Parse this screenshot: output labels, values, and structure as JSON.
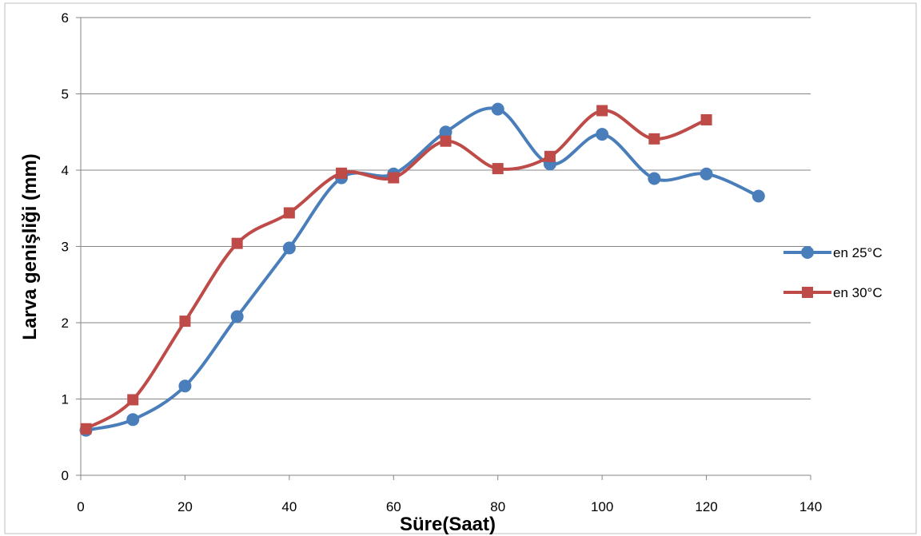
{
  "chart_data": {
    "type": "line",
    "xlabel": "Süre(Saat)",
    "ylabel": "Larva genişliği (mm)",
    "xlim": [
      0,
      140
    ],
    "ylim": [
      0,
      6
    ],
    "xticks": [
      0,
      20,
      40,
      60,
      80,
      100,
      120,
      140
    ],
    "yticks": [
      0,
      1,
      2,
      3,
      4,
      5,
      6
    ],
    "grid": "horizontal",
    "legend_position": "right",
    "series": [
      {
        "name": "en 25°C",
        "color": "#4a7ebb",
        "marker": "circle",
        "x": [
          1,
          10,
          20,
          30,
          40,
          50,
          60,
          70,
          80,
          90,
          100,
          110,
          120,
          130
        ],
        "values": [
          0.59,
          0.73,
          1.17,
          2.08,
          2.98,
          3.9,
          3.95,
          4.5,
          4.8,
          4.08,
          4.47,
          3.89,
          3.95,
          3.66
        ]
      },
      {
        "name": "en 30°C",
        "color": "#be4b48",
        "marker": "square",
        "x": [
          1,
          10,
          20,
          30,
          40,
          50,
          60,
          70,
          80,
          90,
          100,
          110,
          120
        ],
        "values": [
          0.61,
          0.99,
          2.02,
          3.04,
          3.44,
          3.96,
          3.9,
          4.38,
          4.02,
          4.18,
          4.78,
          4.41,
          4.66
        ]
      }
    ]
  }
}
